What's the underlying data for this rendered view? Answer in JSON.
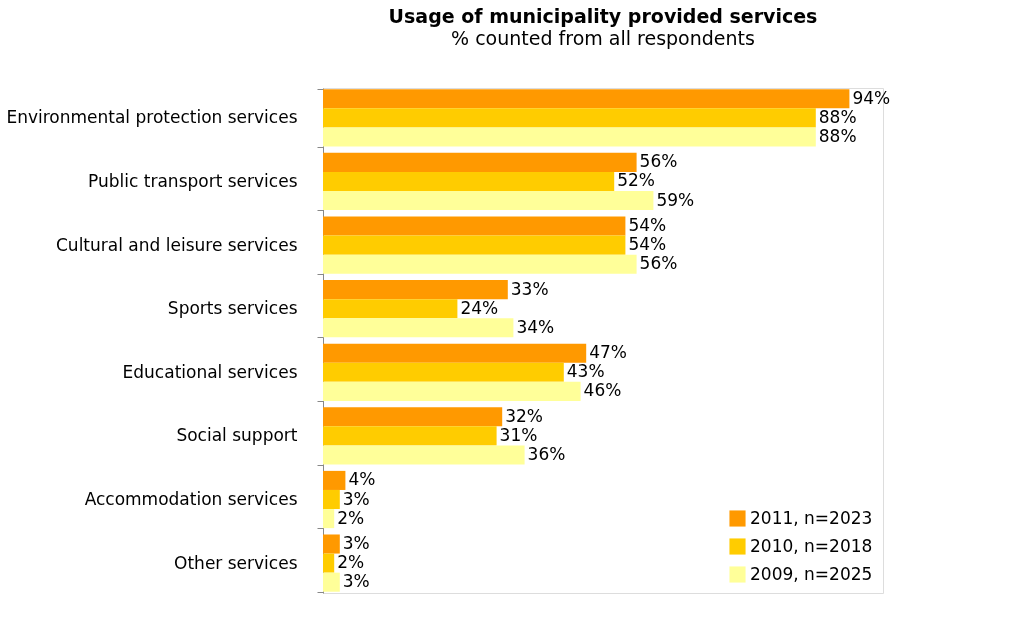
{
  "chart_data": {
    "type": "bar",
    "orientation": "horizontal",
    "title": "Usage of municipality provided services",
    "subtitle": "% counted from all respondents",
    "categories": [
      "Environmental protection services",
      "Public transport services",
      "Cultural and leisure services",
      "Sports services",
      "Educational services",
      "Social support",
      "Accommodation services",
      "Other services"
    ],
    "series": [
      {
        "name": "2011, n=2023",
        "color": "#ff9900",
        "values": [
          94,
          56,
          54,
          33,
          47,
          32,
          4,
          3
        ],
        "value_labels": [
          "94%",
          "56%",
          "54%",
          "33%",
          "47%",
          "32%",
          "4%",
          "3%"
        ]
      },
      {
        "name": "2010, n=2018",
        "color": "#ffcc00",
        "values": [
          88,
          52,
          54,
          24,
          43,
          31,
          3,
          2
        ],
        "value_labels": [
          "88%",
          "52%",
          "54%",
          "24%",
          "43%",
          "31%",
          "3%",
          "2%"
        ]
      },
      {
        "name": "2009, n=2025",
        "color": "#ffff99",
        "values": [
          88,
          59,
          56,
          34,
          46,
          36,
          2,
          3
        ],
        "value_labels": [
          "88%",
          "59%",
          "56%",
          "34%",
          "46%",
          "36%",
          "2%",
          "3%"
        ]
      }
    ],
    "xlim": [
      0,
      100
    ],
    "tick_labels": "y",
    "legend": "bottom right"
  }
}
